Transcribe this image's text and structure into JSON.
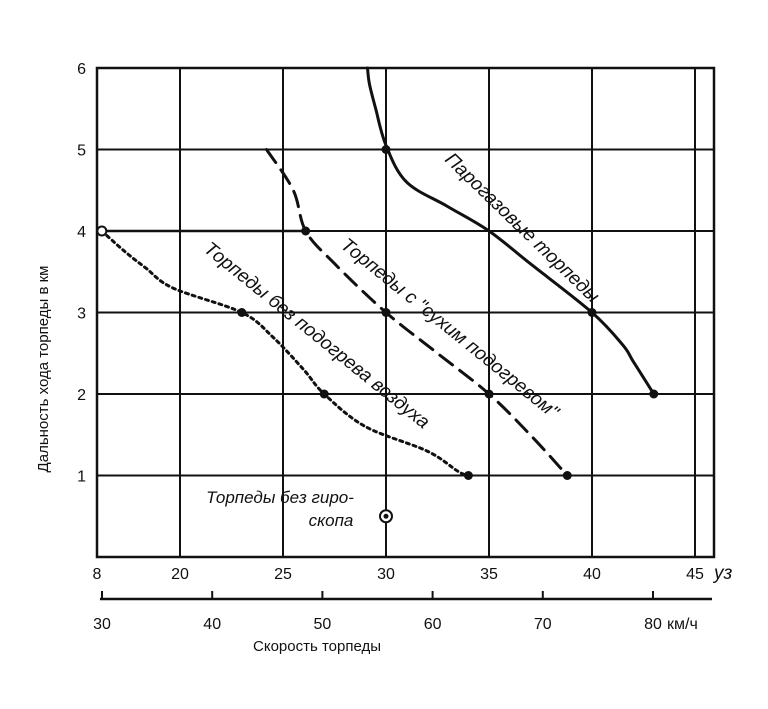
{
  "chart_data": {
    "type": "line",
    "title": "",
    "xlabel": "Скорость торпеды",
    "ylabel": "Дальность хода торпеды в км",
    "x_unit_knots": "уз",
    "x_unit_kmh": "км/ч",
    "xlim_knots": [
      8,
      46
    ],
    "ylim": [
      0,
      6
    ],
    "x_ticks_knots": [
      "8",
      "20",
      "25",
      "30",
      "35",
      "40",
      "45"
    ],
    "x_ticks_kmh": [
      "30",
      "40",
      "50",
      "60",
      "70",
      "80"
    ],
    "y_ticks": [
      "1",
      "2",
      "3",
      "4",
      "5",
      "6"
    ],
    "grid": true,
    "series": [
      {
        "name": "Парогазовые торпеды",
        "style": "solid",
        "points": [
          [
            29.1,
            6.0
          ],
          [
            29.2,
            5.8
          ],
          [
            29.5,
            5.5
          ],
          [
            30.0,
            5.05
          ],
          [
            31.0,
            4.6
          ],
          [
            33.0,
            4.3
          ],
          [
            35.0,
            4.0
          ],
          [
            37.0,
            3.6
          ],
          [
            40.0,
            3.0
          ],
          [
            41.5,
            2.6
          ],
          [
            42.0,
            2.4
          ],
          [
            43.0,
            2.0
          ]
        ],
        "markers": [
          [
            30.0,
            5.0
          ],
          [
            40.0,
            3.0
          ],
          [
            43.0,
            2.0
          ]
        ]
      },
      {
        "name": "Торпеды с \"сухим подогревом\"",
        "style": "dashed",
        "points": [
          [
            24.2,
            5.0
          ],
          [
            25.5,
            4.5
          ],
          [
            26.1,
            4.0
          ],
          [
            27.5,
            3.6
          ],
          [
            30.0,
            3.0
          ],
          [
            32.5,
            2.5
          ],
          [
            35.0,
            2.0
          ],
          [
            37.0,
            1.5
          ],
          [
            38.8,
            1.0
          ]
        ],
        "markers": [
          [
            26.1,
            4.0
          ],
          [
            30.0,
            3.0
          ],
          [
            35.0,
            2.0
          ],
          [
            38.8,
            1.0
          ]
        ]
      },
      {
        "name": "Торпеды без подогрева воздуха",
        "style": "dotted",
        "points": [
          [
            8.7,
            4.0
          ],
          [
            12.0,
            3.75
          ],
          [
            15.0,
            3.55
          ],
          [
            19.0,
            3.3
          ],
          [
            23.0,
            3.0
          ],
          [
            24.5,
            2.7
          ],
          [
            26.0,
            2.3
          ],
          [
            27.0,
            2.0
          ],
          [
            29.0,
            1.6
          ],
          [
            32.0,
            1.3
          ],
          [
            33.5,
            1.05
          ],
          [
            34.0,
            1.0
          ]
        ],
        "markers": [
          [
            23.0,
            3.0
          ],
          [
            27.0,
            2.0
          ],
          [
            34.0,
            1.0
          ]
        ],
        "open_marker": [
          8.7,
          4.0
        ]
      }
    ],
    "connector": {
      "from": [
        8.7,
        4.0
      ],
      "to": [
        26.1,
        4.0
      ]
    },
    "annotation": {
      "line1": "Торпеды без гиро-",
      "line2": "скопа",
      "point": [
        30.0,
        0.5
      ]
    }
  }
}
